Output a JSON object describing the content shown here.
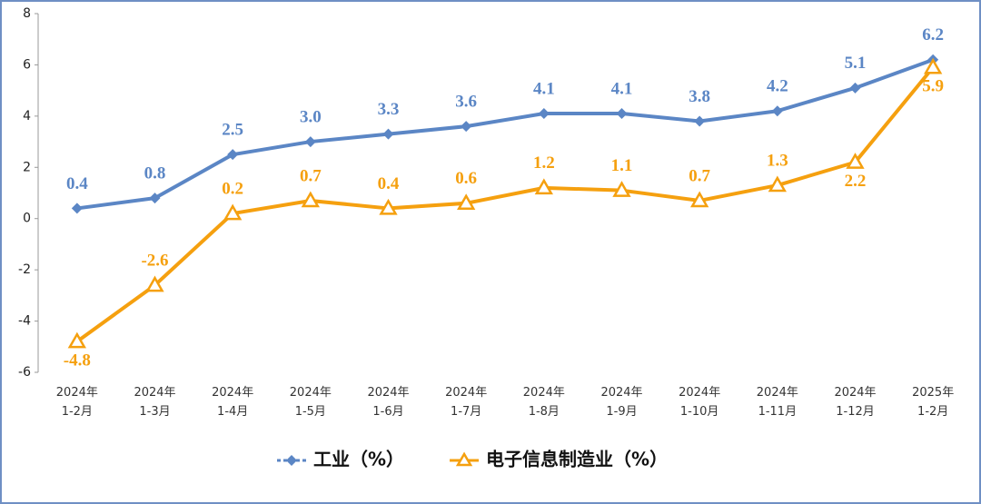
{
  "chart_data": {
    "type": "line",
    "categories": [
      "2024年\n1-2月",
      "2024年\n1-3月",
      "2024年\n1-4月",
      "2024年\n1-5月",
      "2024年\n1-6月",
      "2024年\n1-7月",
      "2024年\n1-8月",
      "2024年\n1-9月",
      "2024年\n1-10月",
      "2024年\n1-11月",
      "2024年\n1-12月",
      "2025年\n1-2月"
    ],
    "series": [
      {
        "name": "工业（%）",
        "color": "#5b86c5",
        "marker": "diamond",
        "values": [
          0.4,
          0.8,
          2.5,
          3,
          3.3,
          3.6,
          4.1,
          4.1,
          3.8,
          4.2,
          5.1,
          6.2
        ],
        "value_labels": [
          "0.4",
          "0.8",
          "2.5",
          "3.0",
          "3.3",
          "3.6",
          "4.1",
          "4.1",
          "3.8",
          "4.2",
          "5.1",
          "6.2"
        ]
      },
      {
        "name": "电子信息制造业（%）",
        "color": "#f5a00f",
        "marker": "triangle",
        "values": [
          -4.8,
          -2.6,
          0.2,
          0.7,
          0.4,
          0.6,
          1.2,
          1.1,
          0.7,
          1.3,
          2.2,
          5.9
        ],
        "value_labels": [
          "-4.8",
          "-2.6",
          "0.2",
          "0.7",
          "0.4",
          "0.6",
          "1.2",
          "1.1",
          "0.7",
          "1.3",
          "2.2",
          "5.9"
        ]
      }
    ],
    "ylim": [
      -6,
      8
    ],
    "yticks": [
      8,
      6,
      4,
      2,
      0,
      -2,
      -4,
      -6
    ],
    "grid": false,
    "legend": "bottom"
  }
}
